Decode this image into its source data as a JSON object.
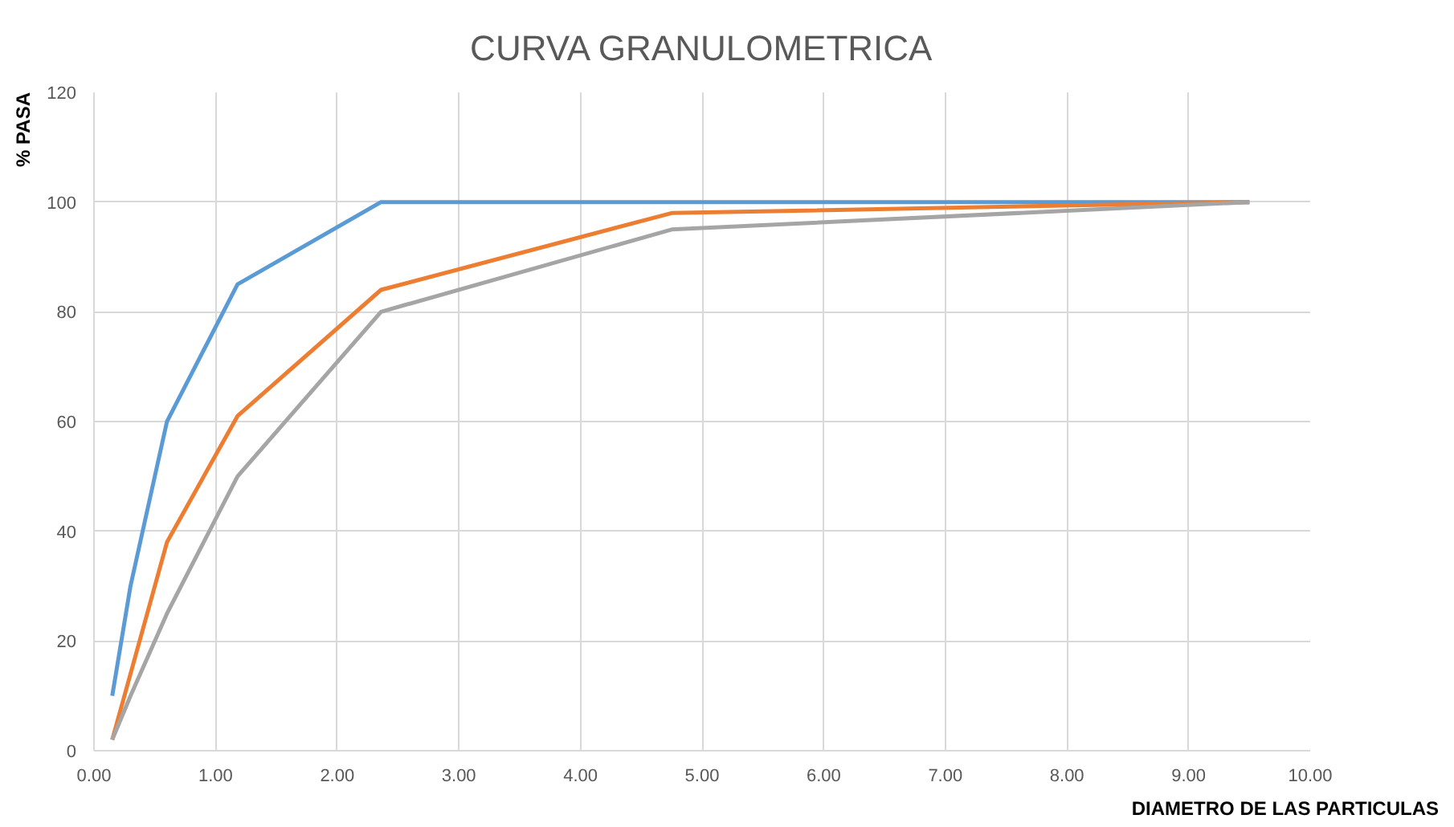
{
  "chart_data": {
    "type": "line",
    "title": "CURVA GRANULOMETRICA",
    "xlabel": "DIAMETRO DE LAS PARTICULAS",
    "ylabel": "% PASA",
    "x": [
      0.15,
      0.3,
      0.6,
      1.18,
      2.36,
      4.75,
      9.5
    ],
    "series": [
      {
        "color": "#5b9bd5",
        "values": [
          10,
          30,
          60,
          85,
          100,
          100,
          100
        ]
      },
      {
        "color": "#ed7d31",
        "x": [
          0.15,
          0.6,
          1.18,
          2.36,
          4.75,
          9.5
        ],
        "values": [
          2,
          38,
          61,
          84,
          98,
          100
        ]
      },
      {
        "color": "#a5a5a5",
        "values": [
          2,
          10,
          25,
          50,
          80,
          95,
          100
        ]
      }
    ],
    "xlim": [
      0,
      10
    ],
    "xticks": [
      {
        "value": 0,
        "label": "0.00"
      },
      {
        "value": 1,
        "label": "1.00"
      },
      {
        "value": 2,
        "label": "2.00"
      },
      {
        "value": 3,
        "label": "3.00"
      },
      {
        "value": 4,
        "label": "4.00"
      },
      {
        "value": 5,
        "label": "5.00"
      },
      {
        "value": 6,
        "label": "6.00"
      },
      {
        "value": 7,
        "label": "7.00"
      },
      {
        "value": 8,
        "label": "8.00"
      },
      {
        "value": 9,
        "label": "9.00"
      },
      {
        "value": 10,
        "label": "10.00"
      }
    ],
    "ylim": [
      0,
      120
    ],
    "yticks": [
      0,
      20,
      40,
      60,
      80,
      100,
      120
    ],
    "grid": true
  }
}
